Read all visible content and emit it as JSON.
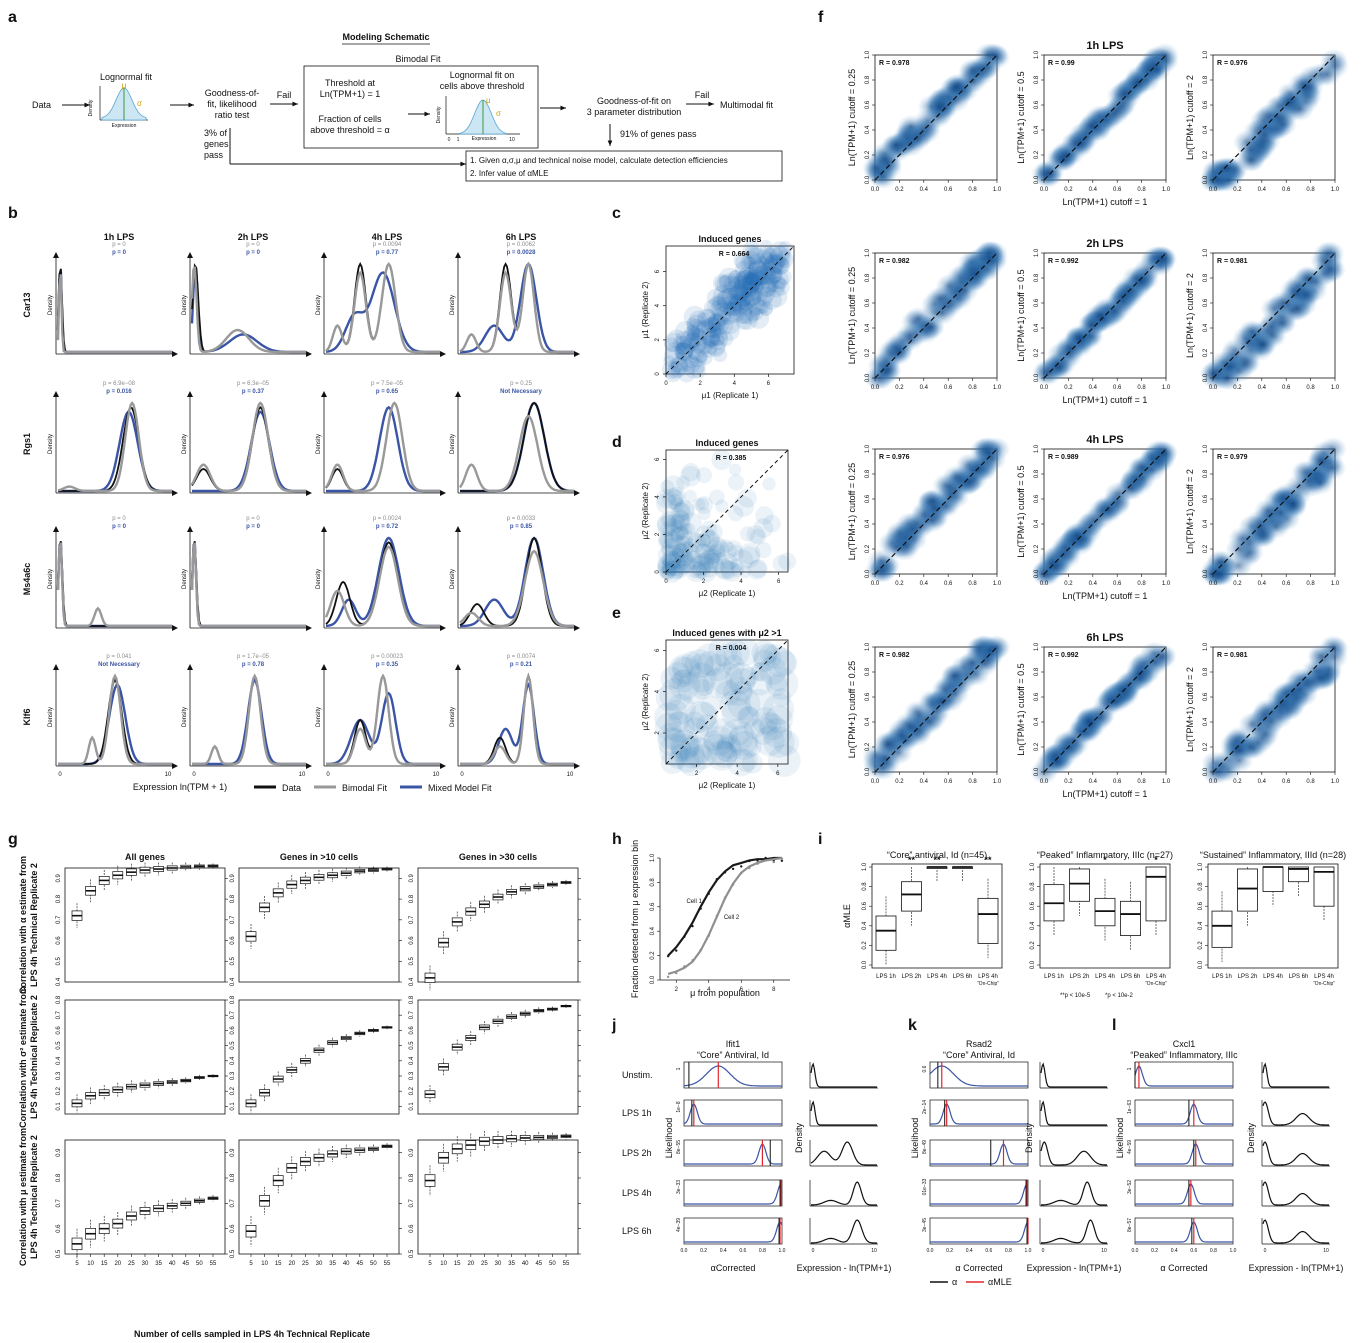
{
  "panel_letters": [
    "a",
    "b",
    "c",
    "d",
    "e",
    "f",
    "g",
    "h",
    "i",
    "j",
    "k",
    "l"
  ],
  "panel_a": {
    "title": "Modeling Schematic",
    "bimodal_label": "Bimodal Fit",
    "data": "Data",
    "lognormal_fit": "Lognormal fit",
    "mini_density": "Density",
    "mini_expression": "Expression",
    "mu": "μ",
    "sigma": "σ",
    "gof_lines": [
      "Goodness-of-",
      "fit, likelihood",
      "ratio test"
    ],
    "fail": "Fail",
    "pass_lines": [
      "3% of",
      "genes",
      "pass"
    ],
    "threshold_lines": [
      "Threshold at",
      "Ln(TPM+1) = 1"
    ],
    "fraction_lines": [
      "Fraction of cells",
      "above threshold = α"
    ],
    "lognormal_above_lines": [
      "Lognormal fit on",
      "cells above threshold"
    ],
    "axis_0": "0",
    "axis_1": "1",
    "axis_10": "10",
    "gof3_lines": [
      "Goodness-of-fit on",
      "3 parameter distribution"
    ],
    "fail2": "Fail",
    "multimodal": "Multimodal fit",
    "pass91": "91% of genes pass",
    "step1": "1. Given α,σ,μ and technical noise model, calculate detection efficiencies",
    "step2": "2. Infer value of αMLE"
  },
  "colors": {
    "data": "#111111",
    "bimodal": "#999999",
    "mixed": "#3a55a6",
    "blue_text": "#3a55a6",
    "gray_text": "#8c8c8c",
    "red": "#e0262c",
    "density_blue": "#1f6eb4"
  },
  "chart_data": [
    {
      "type": "line",
      "panel": "b",
      "timepoints": [
        "1h LPS",
        "2h LPS",
        "4h LPS",
        "6h LPS"
      ],
      "genes": [
        "Car13",
        "Rgs1",
        "Ms4a6c",
        "Klf6"
      ],
      "ylabel": "Density",
      "xlabel": "Expression ln(TPM + 1)",
      "xticks": [
        "0",
        "10"
      ],
      "legend": [
        "Data",
        "Bimodal Fit",
        "Mixed Model Fit"
      ],
      "p_bimodal": [
        [
          "p = 0",
          "p = 0",
          "p = 0.0094",
          "p = 0.0062"
        ],
        [
          "p = 6.9e−08",
          "p = 6.3e−05",
          "p = 7.5e−05",
          "p = 0.25"
        ],
        [
          "p = 0",
          "p = 0",
          "p = 0.0024",
          "p = 0.0033"
        ],
        [
          "p = 0.041",
          "p = 1.7e−05",
          "p = 0.00023",
          "p = 0.0074"
        ]
      ],
      "p_mixed": [
        [
          "p = 0",
          "p = 0",
          "p = 0.77",
          "p = 0.0028"
        ],
        [
          "p = 0.016",
          "p = 0.37",
          "p = 0.65",
          "Not Necessary"
        ],
        [
          "p = 0",
          "p = 0",
          "p = 0.72",
          "p = 0.85"
        ],
        [
          "Not Necessary",
          "p = 0.78",
          "p = 0.35",
          "p = 0.21"
        ]
      ]
    },
    {
      "type": "scatter",
      "panel": "c",
      "title": "Induced genes",
      "xlabel": "μ1 (Replicate 1)",
      "ylabel": "μ1 (Replicate 2)",
      "r": "R = 0.664",
      "xlim": [
        0,
        7.5
      ],
      "ylim": [
        0,
        7.5
      ],
      "xticks": [
        "0",
        "2",
        "4",
        "6"
      ],
      "yticks": [
        "0",
        "2",
        "4",
        "6"
      ]
    },
    {
      "type": "scatter",
      "panel": "d",
      "title": "Induced genes",
      "xlabel": "μ2 (Replicate 1)",
      "ylabel": "μ2 (Replicate 2)",
      "r": "R = 0.385",
      "xlim": [
        0,
        6.5
      ],
      "ylim": [
        0,
        6.5
      ],
      "xticks": [
        "0",
        "2",
        "4",
        "6"
      ],
      "yticks": [
        "0",
        "2",
        "4",
        "6"
      ]
    },
    {
      "type": "scatter",
      "panel": "e",
      "title": "Induced genes with μ2 >1",
      "xlabel": "μ2 (Replicate 1)",
      "ylabel": "μ2 (Replicate 2)",
      "r": "R = 0.004",
      "xlim": [
        0.5,
        6.5
      ],
      "ylim": [
        0.5,
        6.5
      ],
      "xticks": [
        "2",
        "4",
        "6"
      ],
      "yticks": [
        "2",
        "4",
        "6"
      ]
    },
    {
      "type": "heatmap",
      "panel": "f",
      "rows": [
        "1h LPS",
        "2h LPS",
        "4h LPS",
        "6h LPS"
      ],
      "cutoffs": [
        "Ln(TPM+1) cutoff = 0.25",
        "Ln(TPM+1) cutoff = 0.5",
        "Ln(TPM+1) cutoff = 2"
      ],
      "xlabel": "Ln(TPM+1) cutoff = 1",
      "r_values": [
        [
          "R = 0.978",
          "R = 0.99",
          "R = 0.976"
        ],
        [
          "R = 0.982",
          "R = 0.992",
          "R = 0.981"
        ],
        [
          "R = 0.976",
          "R = 0.989",
          "R = 0.979"
        ],
        [
          "R = 0.982",
          "R = 0.992",
          "R = 0.981"
        ]
      ],
      "ticks": [
        "0.0",
        "0.2",
        "0.4",
        "0.6",
        "0.8",
        "1.0"
      ],
      "xlim": [
        0,
        1
      ],
      "ylim": [
        0,
        1
      ]
    },
    {
      "type": "bar",
      "subtype": "boxplot",
      "panel": "g",
      "columns": [
        "All genes",
        "Genes in >10 cells",
        "Genes in >30 cells"
      ],
      "row_labels": [
        [
          "Correlation with α estimate from",
          "LPS 4h Technical Replicate 2"
        ],
        [
          "Correlation with σ² estimate from",
          "LPS 4h Technical Replicate 2"
        ],
        [
          "Correlation with μ estimate from",
          "LPS 4h Technical Replicate 2"
        ]
      ],
      "xlabel": "Number of cells sampled in LPS 4h Technical Replicate",
      "categories": [
        "5",
        "10",
        "15",
        "20",
        "25",
        "30",
        "35",
        "40",
        "45",
        "50",
        "55"
      ],
      "row_ylims": [
        [
          0.4,
          0.95
        ],
        [
          0.05,
          0.8
        ],
        [
          0.5,
          0.95
        ]
      ],
      "row_yticks": [
        [
          "0.4",
          "0.5",
          "0.6",
          "0.7",
          "0.8",
          "0.9"
        ],
        [
          "0.1",
          "0.2",
          "0.3",
          "0.4",
          "0.5",
          "0.6",
          "0.7",
          "0.8"
        ],
        [
          "0.5",
          "0.6",
          "0.7",
          "0.8",
          "0.9"
        ]
      ],
      "medians": [
        [
          [
            0.72,
            0.84,
            0.89,
            0.915,
            0.93,
            0.94,
            0.945,
            0.95,
            0.955,
            0.958,
            0.96
          ],
          [
            0.62,
            0.76,
            0.83,
            0.87,
            0.89,
            0.905,
            0.915,
            0.925,
            0.935,
            0.94,
            0.945
          ],
          [
            0.42,
            0.59,
            0.69,
            0.74,
            0.775,
            0.81,
            0.835,
            0.85,
            0.86,
            0.87,
            0.88
          ]
        ],
        [
          [
            0.12,
            0.17,
            0.19,
            0.21,
            0.23,
            0.24,
            0.25,
            0.26,
            0.27,
            0.29,
            0.3
          ],
          [
            0.12,
            0.19,
            0.28,
            0.34,
            0.4,
            0.47,
            0.52,
            0.55,
            0.58,
            0.6,
            0.62
          ],
          [
            0.18,
            0.36,
            0.49,
            0.55,
            0.62,
            0.66,
            0.69,
            0.71,
            0.73,
            0.74,
            0.76
          ]
        ],
        [
          [
            0.54,
            0.58,
            0.6,
            0.62,
            0.65,
            0.67,
            0.68,
            0.69,
            0.7,
            0.71,
            0.72
          ],
          [
            0.59,
            0.71,
            0.79,
            0.84,
            0.865,
            0.88,
            0.895,
            0.905,
            0.91,
            0.915,
            0.925
          ],
          [
            0.79,
            0.88,
            0.915,
            0.93,
            0.945,
            0.95,
            0.955,
            0.958,
            0.96,
            0.962,
            0.965
          ]
        ]
      ]
    },
    {
      "type": "line",
      "panel": "h",
      "xlabel": "μ from population",
      "ylabel": "Fraction detected from μ expression bin",
      "series": [
        {
          "name": "Cell 1",
          "x": [
            1.5,
            2,
            2.5,
            3,
            3.5,
            4,
            4.5,
            5,
            5.5,
            6,
            6.5,
            7,
            7.5,
            8,
            8.5
          ],
          "y": [
            0.2,
            0.27,
            0.36,
            0.47,
            0.6,
            0.72,
            0.82,
            0.89,
            0.94,
            0.96,
            0.98,
            0.99,
            0.99,
            1.0,
            1.0
          ]
        },
        {
          "name": "Cell 2",
          "x": [
            1.5,
            2,
            2.5,
            3,
            3.5,
            4,
            4.5,
            5,
            5.5,
            6,
            6.5,
            7,
            7.5,
            8,
            8.5
          ],
          "y": [
            0.05,
            0.07,
            0.1,
            0.15,
            0.24,
            0.37,
            0.52,
            0.67,
            0.79,
            0.88,
            0.93,
            0.96,
            0.98,
            0.99,
            1.0
          ]
        }
      ],
      "xlim": [
        1,
        9
      ],
      "ylim": [
        0,
        1
      ],
      "xticks": [
        "2",
        "4",
        "6",
        "8"
      ],
      "yticks": [
        "0.0",
        "0.2",
        "0.4",
        "0.6",
        "0.8",
        "1.0"
      ]
    },
    {
      "type": "bar",
      "subtype": "boxplot",
      "panel": "i",
      "ylabel": "αMLE",
      "groups": [
        "“Core” antiviral, Id (n=45)",
        "“Peaked” Inflammatory, IIIc (n=27)",
        "“Sustained” Inflammatory, IIId (n=28)"
      ],
      "categories": [
        "LPS 1h",
        "LPS 2h",
        "LPS 4h",
        "LPS 6h",
        "LPS 4h"
      ],
      "on_chip": "“On-Chip”",
      "yticks": [
        "0.0",
        "0.2",
        "0.4",
        "0.6",
        "0.8",
        "1.0"
      ],
      "ylim": [
        0,
        1
      ],
      "stars": [
        [
          "",
          "**",
          "**",
          "",
          "**"
        ],
        [
          "",
          "",
          "*",
          "",
          "*"
        ],
        [
          "",
          "",
          "",
          "",
          ""
        ]
      ],
      "legend_a": "**p < 10e-5",
      "legend_b": "*p < 10e-2",
      "boxes": [
        [
          [
            0.15,
            0.35,
            0.5
          ],
          [
            0.55,
            0.72,
            0.85
          ],
          [
            1.0,
            1.0,
            1.0
          ],
          [
            1.0,
            1.0,
            1.0
          ],
          [
            0.22,
            0.52,
            0.68
          ]
        ],
        [
          [
            0.45,
            0.63,
            0.82
          ],
          [
            0.65,
            0.83,
            0.98
          ],
          [
            0.4,
            0.55,
            0.68
          ],
          [
            0.3,
            0.52,
            0.65
          ],
          [
            0.45,
            0.9,
            1.0
          ]
        ],
        [
          [
            0.18,
            0.4,
            0.55
          ],
          [
            0.55,
            0.78,
            0.98
          ],
          [
            0.75,
            1.0,
            1.0
          ],
          [
            0.85,
            0.98,
            1.0
          ],
          [
            0.6,
            0.95,
            1.0
          ]
        ]
      ]
    },
    {
      "type": "line",
      "panel": "j-l",
      "genes": [
        [
          "Ifit1",
          "“Core” Antiviral, Id"
        ],
        [
          "Rsad2",
          "“Core” Antiviral, Id"
        ],
        [
          "Cxcl1",
          "“Peaked” Inflammatory, IIIc"
        ]
      ],
      "conditions": [
        "Unstim.",
        "LPS 1h",
        "LPS 2h",
        "LPS 4h",
        "LPS 6h"
      ],
      "likelihood_label": "Likelihood",
      "density_label": "Density",
      "alpha_xlabels": [
        "αCorrected",
        "α Corrected",
        "α Corrected"
      ],
      "expr_xlabel": "Expression - ln(TPM+1)",
      "alpha_ticks": [
        "0.0",
        "0.2",
        "0.4",
        "0.6",
        "0.8",
        "1.0"
      ],
      "expr_ticks": [
        "0",
        "10"
      ],
      "legend": [
        "α",
        "αMLE"
      ],
      "ylab_top": [
        [
          "1",
          "0.6",
          "1"
        ],
        [
          "1e−8",
          "2e−14",
          "1e−63"
        ],
        [
          "8e−55",
          "8e−49",
          "4e−59"
        ],
        [
          "3e−33",
          "01e−33",
          "3e−52"
        ],
        [
          "4e−39",
          "3e−45",
          "8e−57"
        ]
      ],
      "alpha_vals": [
        [
          0.05,
          0.08,
          0.0
        ],
        [
          0.08,
          0.15,
          0.55
        ],
        [
          0.88,
          0.62,
          0.6
        ],
        [
          0.98,
          0.98,
          0.55
        ],
        [
          0.97,
          0.99,
          0.58
        ]
      ],
      "alpha_mle": [
        [
          0.35,
          0.12,
          0.04
        ],
        [
          0.1,
          0.17,
          0.6
        ],
        [
          0.8,
          0.75,
          0.62
        ],
        [
          0.99,
          0.99,
          0.57
        ],
        [
          0.98,
          1.0,
          0.6
        ]
      ]
    }
  ]
}
